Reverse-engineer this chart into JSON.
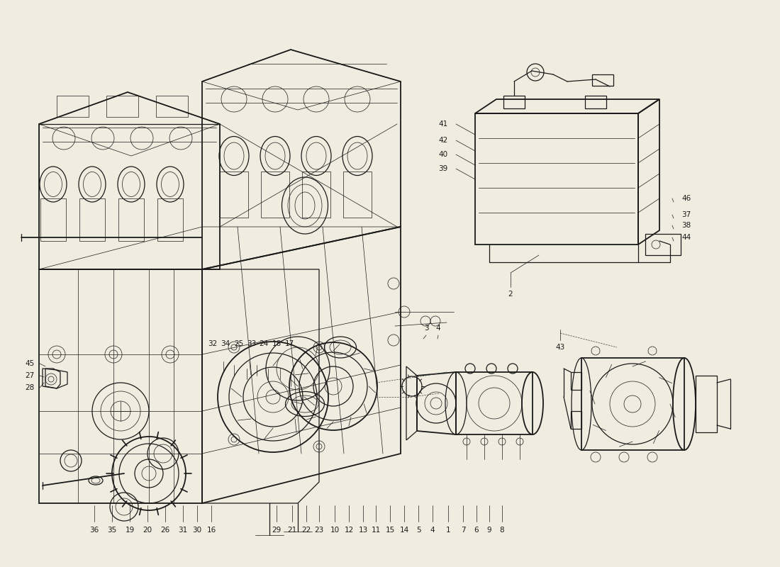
{
  "bg_color": "#f0ece0",
  "line_color": "#1a1a1a",
  "figsize": [
    11.0,
    8.0
  ],
  "dpi": 100,
  "bottom_labels_left": [
    "36",
    "35",
    "19",
    "20",
    "26",
    "31",
    "30",
    "16"
  ],
  "bottom_labels_mid": [
    "29",
    "21",
    "22",
    "23",
    "10",
    "12",
    "13",
    "11",
    "15",
    "14",
    "5",
    "4",
    "1",
    "7",
    "6",
    "9",
    "8"
  ],
  "top_labels": [
    "32",
    "34",
    "25",
    "33",
    "24",
    "18",
    "17"
  ],
  "battery_left_labels": [
    "41",
    "42",
    "40",
    "39"
  ],
  "battery_right_labels": [
    "46",
    "37",
    "38",
    "44"
  ],
  "other_labels": [
    "45",
    "27",
    "28",
    "3",
    "4",
    "2",
    "43"
  ]
}
